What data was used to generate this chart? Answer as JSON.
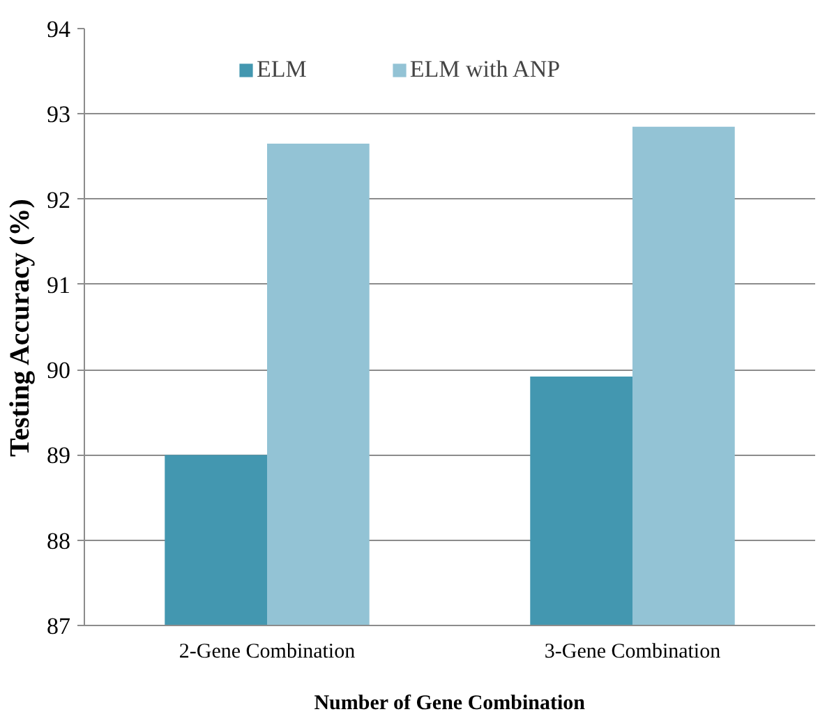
{
  "chart_data": {
    "type": "bar",
    "xlabel": "Number of Gene Combination",
    "ylabel": "Testing Accuracy (%)",
    "categories": [
      "2-Gene Combination",
      "3-Gene Combination"
    ],
    "series": [
      {
        "name": "ELM",
        "color": "#4397b0",
        "values": [
          89.0,
          89.92
        ]
      },
      {
        "name": "ELM with ANP",
        "color": "#93c3d5",
        "values": [
          92.65,
          92.85
        ]
      }
    ],
    "ylim": [
      87,
      94
    ],
    "yticks": [
      87,
      88,
      89,
      90,
      91,
      92,
      93,
      94
    ],
    "grid": "y",
    "legend": "top"
  }
}
